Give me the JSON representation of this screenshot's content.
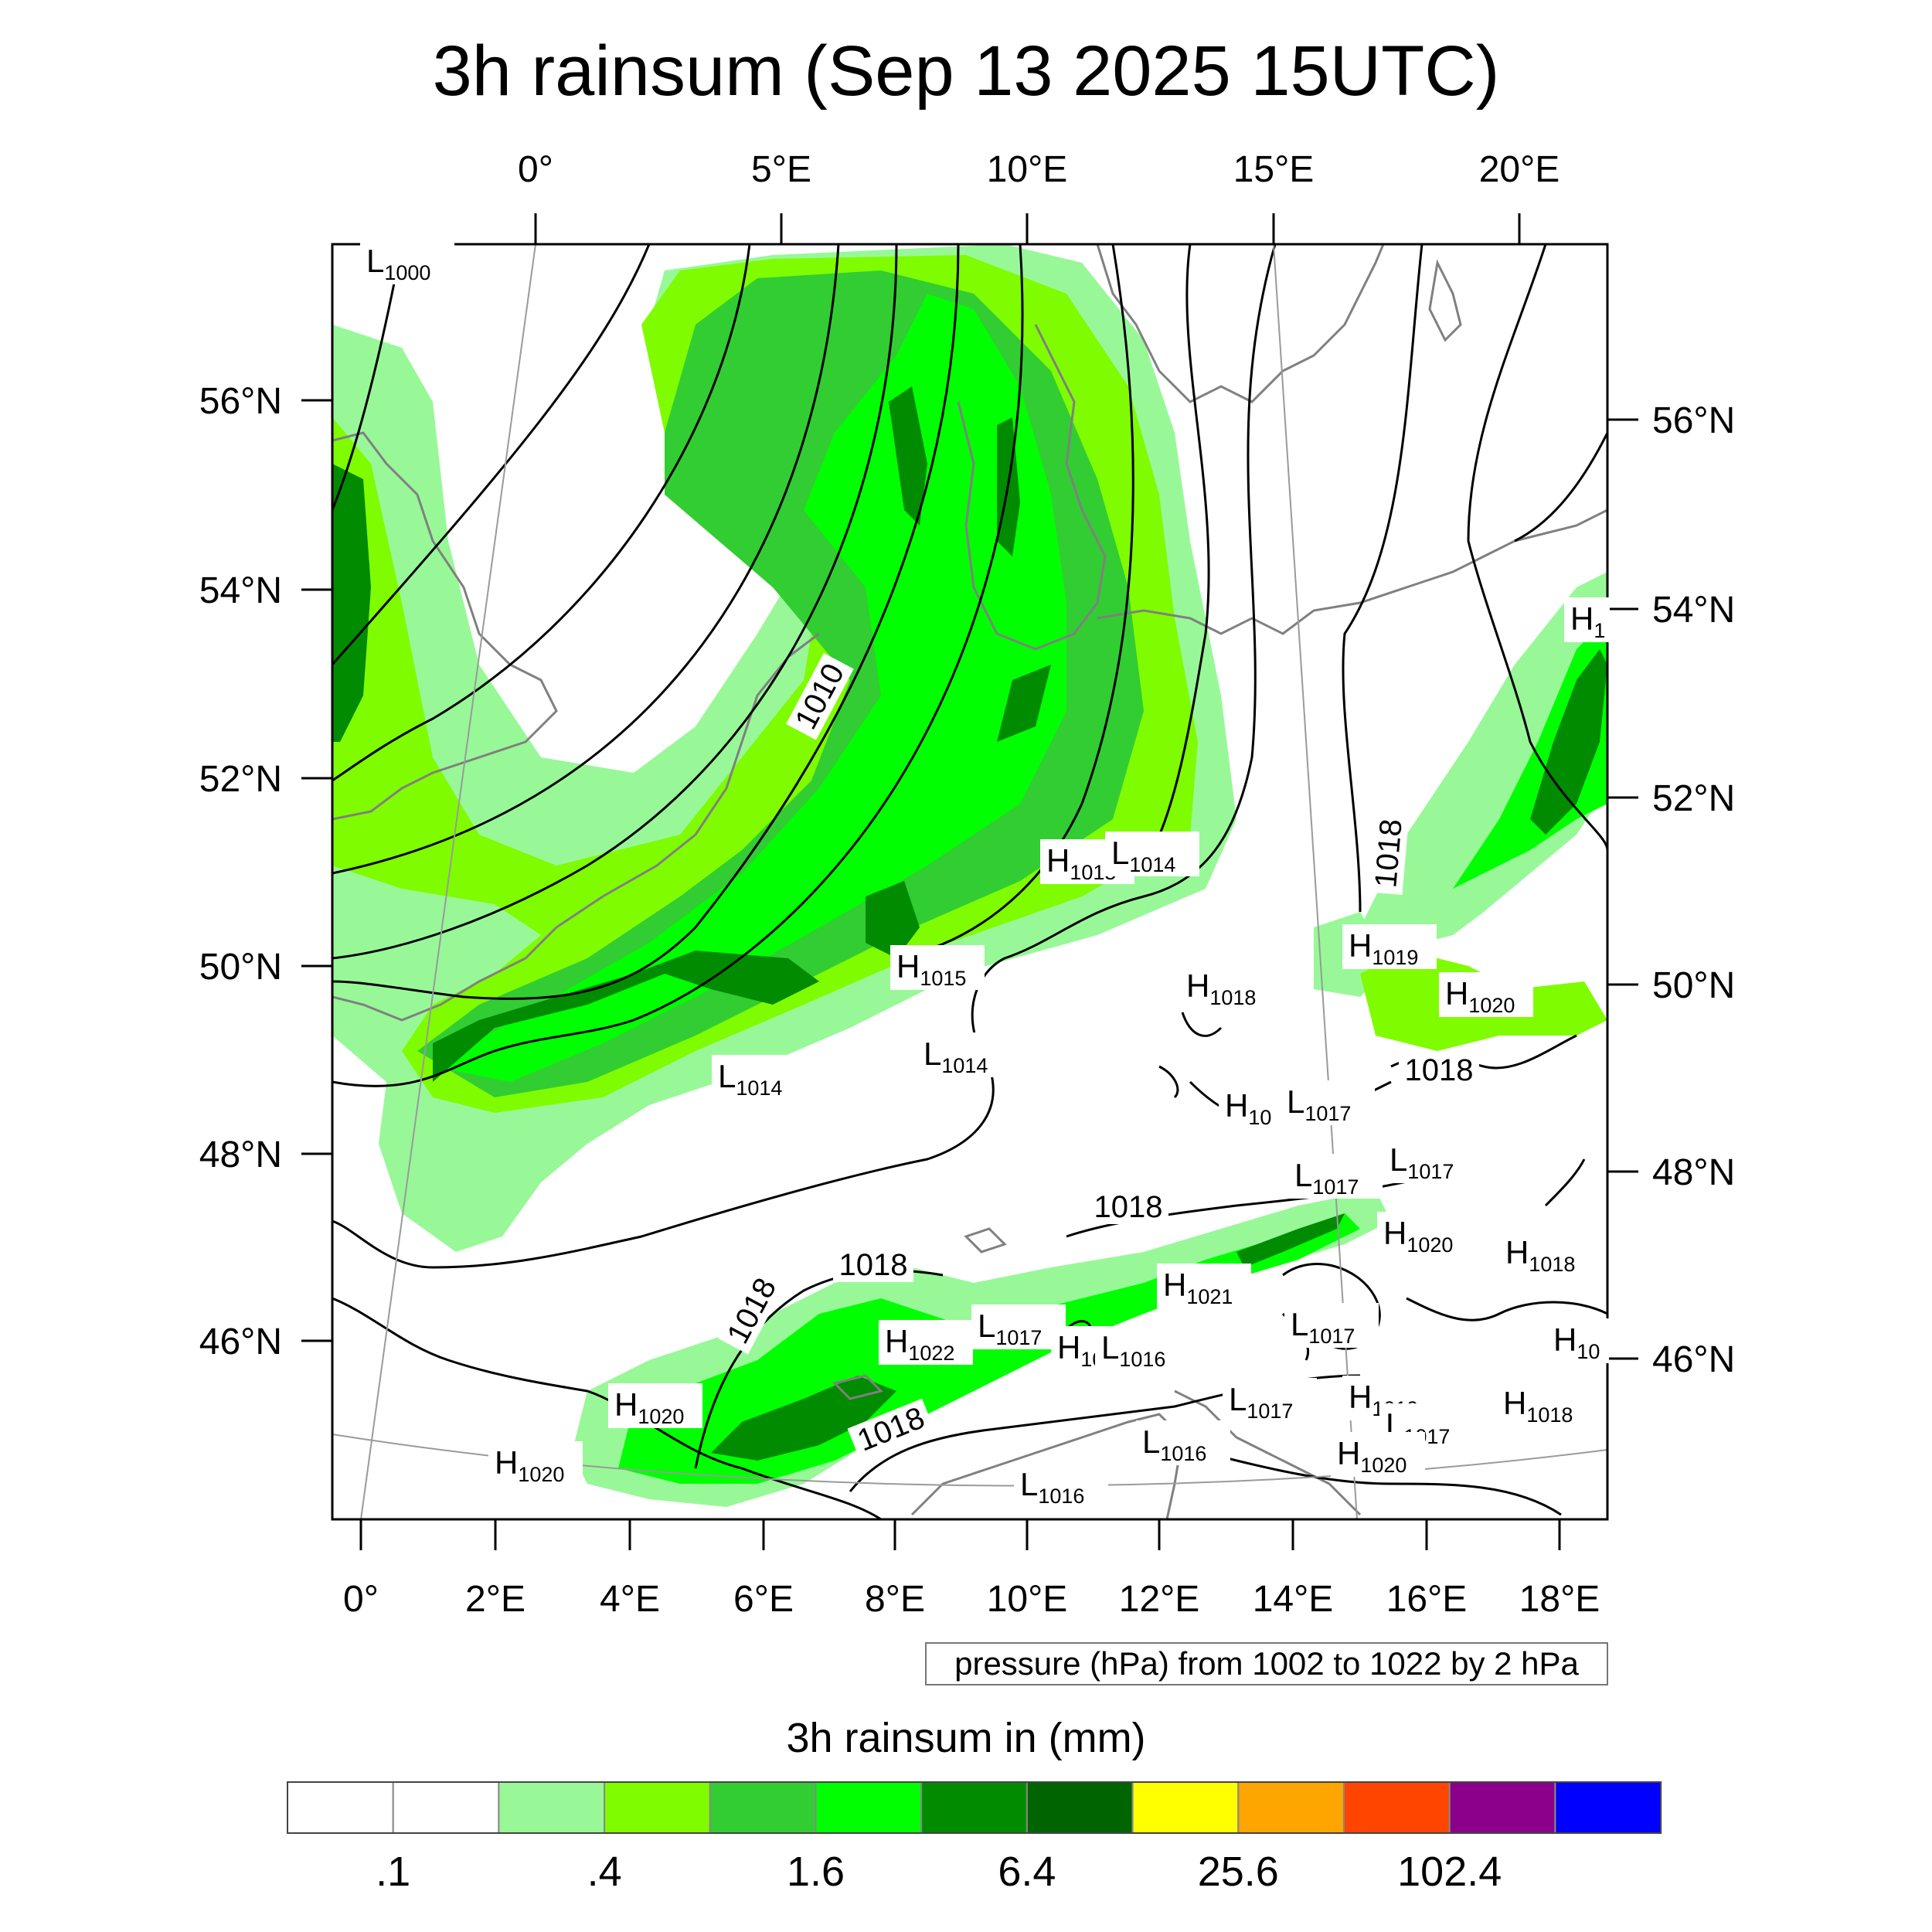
{
  "title": "3h rainsum (Sep 13 2025 15UTC)",
  "map": {
    "top_lon_ticks": [
      "0°",
      "5°E",
      "10°E",
      "15°E",
      "20°E"
    ],
    "bottom_lon_ticks": [
      "0°",
      "2°E",
      "4°E",
      "6°E",
      "8°E",
      "10°E",
      "12°E",
      "14°E",
      "16°E",
      "18°E"
    ],
    "left_lat_ticks": [
      "56°N",
      "54°N",
      "52°N",
      "50°N",
      "48°N",
      "46°N"
    ],
    "right_lat_ticks": [
      "56°N",
      "54°N",
      "52°N",
      "50°N",
      "48°N",
      "46°N"
    ],
    "isobar_labels": [
      "1010",
      "1018",
      "1018",
      "1018",
      "1018",
      "1018",
      "1018"
    ],
    "pressure_centers": [
      {
        "type": "L",
        "value": "1000"
      },
      {
        "type": "H",
        "value": "1015"
      },
      {
        "type": "L",
        "value": "1014"
      },
      {
        "type": "H",
        "value": "1015"
      },
      {
        "type": "L",
        "value": "1014"
      },
      {
        "type": "L",
        "value": "1014"
      },
      {
        "type": "H",
        "value": "1018"
      },
      {
        "type": "H",
        "value": "1019"
      },
      {
        "type": "H",
        "value": "1020"
      },
      {
        "type": "H",
        "value": "10"
      },
      {
        "type": "L",
        "value": "1017"
      },
      {
        "type": "L",
        "value": "1017"
      },
      {
        "type": "L",
        "value": "1017"
      },
      {
        "type": "H",
        "value": "1020"
      },
      {
        "type": "H",
        "value": "1018"
      },
      {
        "type": "H",
        "value": "1021"
      },
      {
        "type": "L",
        "value": "1017"
      },
      {
        "type": "H",
        "value": "1022"
      },
      {
        "type": "L",
        "value": "1017"
      },
      {
        "type": "H",
        "value": "10"
      },
      {
        "type": "L",
        "value": "1016"
      },
      {
        "type": "H",
        "value": "1020"
      },
      {
        "type": "H",
        "value": "1019"
      },
      {
        "type": "L",
        "value": "1017"
      },
      {
        "type": "L",
        "value": "1017"
      },
      {
        "type": "H",
        "value": "1018"
      },
      {
        "type": "L",
        "value": "1016"
      },
      {
        "type": "H",
        "value": "1020"
      },
      {
        "type": "H",
        "value": "1020"
      },
      {
        "type": "L",
        "value": "1016"
      },
      {
        "type": "H",
        "value": "10"
      },
      {
        "type": "H",
        "value": "1"
      }
    ]
  },
  "note": "pressure (hPa) from 1002 to 1022 by 2 hPa",
  "colorbar": {
    "title": "3h rainsum in (mm)",
    "colors": [
      "#ffffff",
      "#ffffff",
      "#98f898",
      "#7ffc00",
      "#32cd32",
      "#00ff00",
      "#008b00",
      "#006400",
      "#ffff00",
      "#ffa500",
      "#ff4500",
      "#8b008b",
      "#0000ff"
    ],
    "labels": [
      ".1",
      ".4",
      "1.6",
      "6.4",
      "25.6",
      "102.4"
    ]
  },
  "colors": {
    "rain_light": "#98f898",
    "rain_lawn": "#7ffc00",
    "rain_lime": "#32cd32",
    "rain_green": "#00ff00",
    "rain_dark": "#008b00",
    "rain_darker": "#006400",
    "coast": "#808080",
    "isobar": "#000000",
    "graticule": "#9a9a9a"
  }
}
